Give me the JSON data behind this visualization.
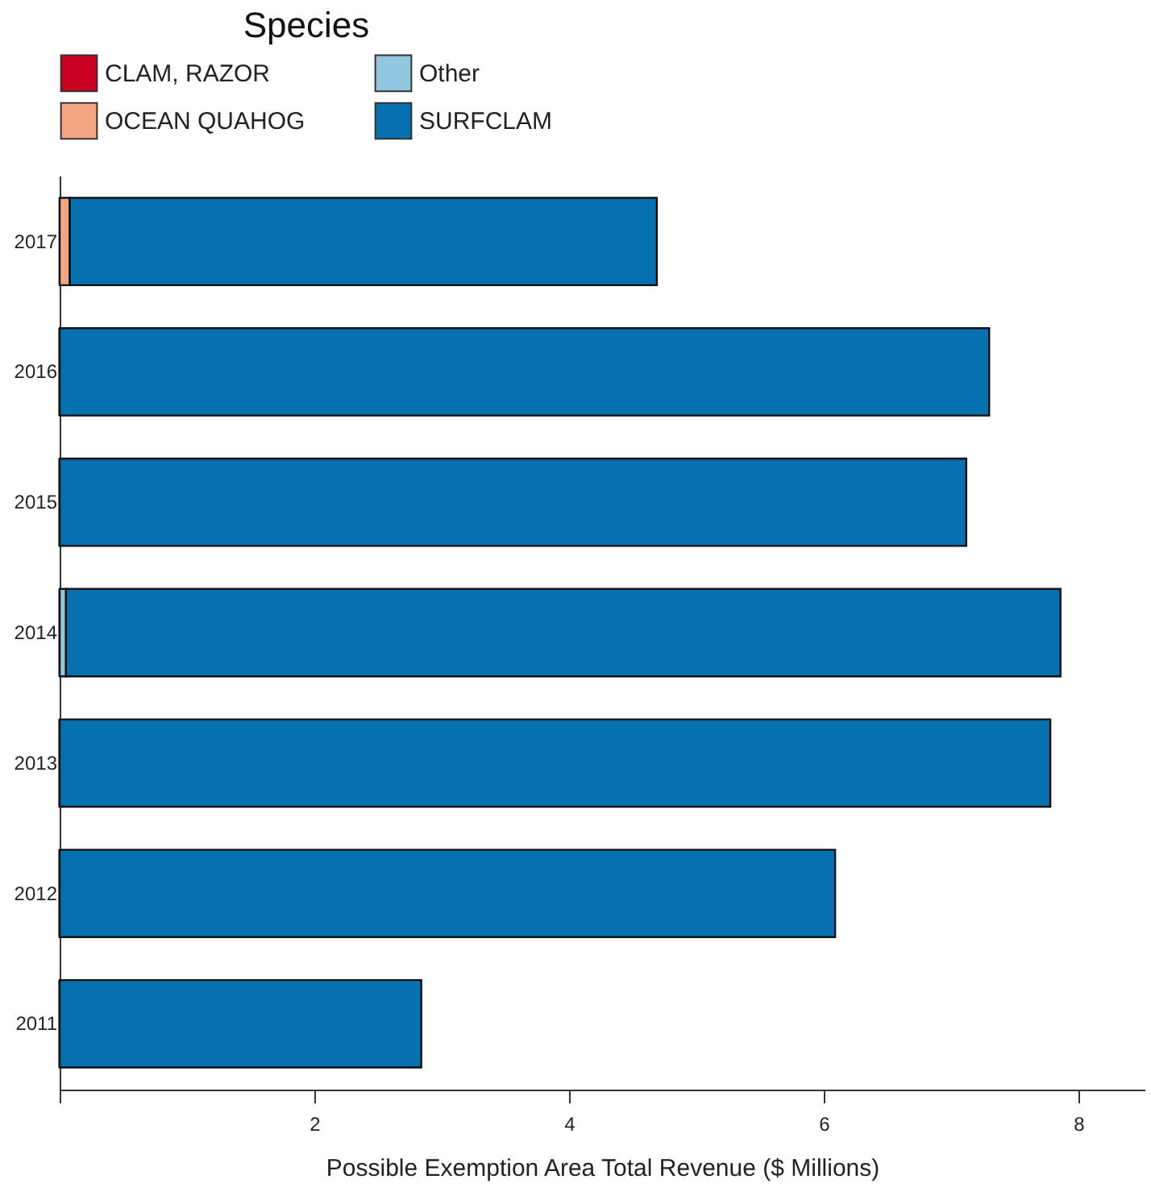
{
  "chart_data": {
    "type": "bar",
    "orientation": "horizontal",
    "stacked": true,
    "xlabel": "Possible Exemption Area Total Revenue ($ Millions)",
    "legend_title": "Species",
    "legend": "top",
    "categories": [
      "2017",
      "2016",
      "2015",
      "2014",
      "2013",
      "2012",
      "2011"
    ],
    "series": [
      {
        "name": "CLAM, RAZOR",
        "color": "#ca0020",
        "values": [
          0,
          0,
          0,
          0,
          0,
          0,
          0
        ]
      },
      {
        "name": "OCEAN QUAHOG",
        "color": "#f4a582",
        "values": [
          0.08,
          0,
          0,
          0,
          0,
          0,
          0
        ]
      },
      {
        "name": "Other",
        "color": "#92c5de",
        "values": [
          0,
          0,
          0,
          0.05,
          0,
          0,
          0
        ]
      },
      {
        "name": "SURFCLAM",
        "color": "#0571b0",
        "values": [
          4.61,
          7.3,
          7.12,
          7.81,
          7.78,
          6.09,
          2.84
        ]
      }
    ],
    "xlim": [
      0,
      8.52
    ],
    "xticks": [
      {
        "value": 0,
        "label": null
      },
      2,
      4,
      6,
      8
    ],
    "grid": false
  }
}
